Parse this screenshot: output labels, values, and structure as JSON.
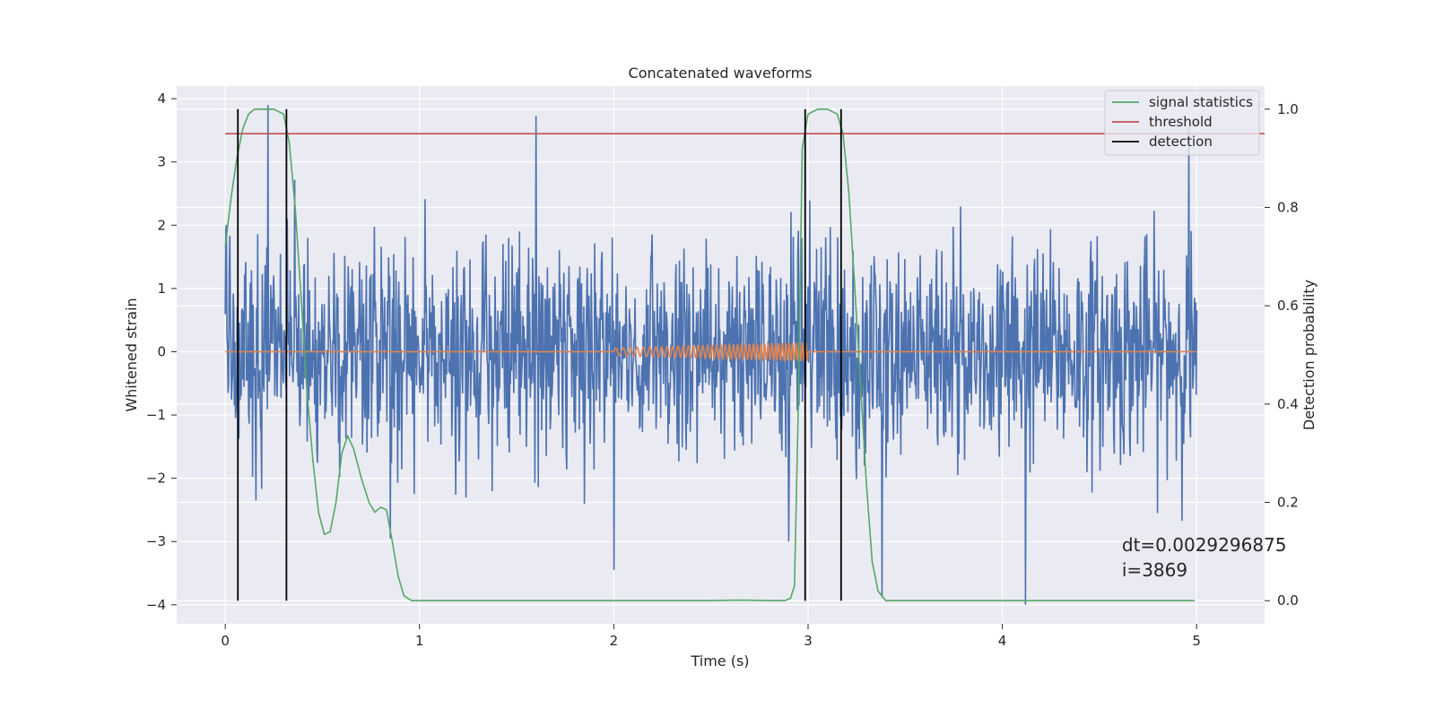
{
  "chart_data": {
    "type": "line",
    "title": "Concatenated waveforms",
    "xlabel": "Time (s)",
    "ylabel": "Whitened strain",
    "y2label": "Detection probability",
    "xlim": [
      -0.25,
      5.35
    ],
    "ylim": [
      -4.3,
      4.2
    ],
    "y2lim": [
      -0.047,
      1.047
    ],
    "xticks": [
      0,
      1,
      2,
      3,
      4,
      5
    ],
    "yticks": [
      -4,
      -3,
      -2,
      -1,
      0,
      1,
      2,
      3,
      4
    ],
    "y2ticks": [
      0.0,
      0.2,
      0.4,
      0.6,
      0.8,
      1.0
    ],
    "xtick_labels": [
      "0",
      "1",
      "2",
      "3",
      "4",
      "5"
    ],
    "ytick_labels": [
      "−4",
      "−3",
      "−2",
      "−1",
      "0",
      "1",
      "2",
      "3",
      "4"
    ],
    "y2tick_labels": [
      "0.0",
      "0.2",
      "0.4",
      "0.6",
      "0.8",
      "1.0"
    ],
    "grid": true,
    "legend_position": "top-right",
    "colors": {
      "background": "#eaeaf2",
      "grid": "#ffffff",
      "strain": "#4c72b0",
      "template": "#dd8452",
      "signal_statistics": "#55a868",
      "threshold": "#c44e52",
      "detection": "#000000"
    },
    "series": [
      {
        "name": "signal statistics",
        "axis": "y2",
        "x": [
          0,
          0.03,
          0.06,
          0.09,
          0.12,
          0.15,
          0.2,
          0.25,
          0.3,
          0.33,
          0.36,
          0.39,
          0.42,
          0.45,
          0.48,
          0.51,
          0.54,
          0.57,
          0.6,
          0.63,
          0.66,
          0.7,
          0.74,
          0.77,
          0.8,
          0.83,
          0.86,
          0.89,
          0.92,
          0.96,
          1.0,
          1.5,
          2.0,
          2.5,
          2.6,
          2.7,
          2.8,
          2.88,
          2.91,
          2.93,
          2.95,
          2.97,
          3.0,
          3.05,
          3.1,
          3.15,
          3.18,
          3.21,
          3.24,
          3.27,
          3.3,
          3.33,
          3.36,
          3.4,
          3.5,
          4.0,
          4.5,
          4.99
        ],
        "y": [
          0.72,
          0.82,
          0.9,
          0.96,
          0.99,
          1.0,
          1.0,
          1.0,
          0.99,
          0.93,
          0.8,
          0.62,
          0.43,
          0.29,
          0.18,
          0.135,
          0.14,
          0.2,
          0.3,
          0.335,
          0.31,
          0.25,
          0.2,
          0.18,
          0.19,
          0.185,
          0.12,
          0.05,
          0.01,
          0.0,
          0.0,
          0.0,
          0.0,
          0.0,
          0.001,
          0.001,
          0.0,
          0.0,
          0.005,
          0.03,
          0.4,
          0.92,
          0.99,
          1.0,
          1.0,
          0.99,
          0.95,
          0.83,
          0.64,
          0.44,
          0.24,
          0.08,
          0.02,
          0.0,
          0.0,
          0.0,
          0.0,
          0.0
        ]
      },
      {
        "name": "threshold",
        "axis": "y2",
        "x": [
          0,
          5.5
        ],
        "y": [
          0.95,
          0.95
        ]
      },
      {
        "name": "detection",
        "axis": "y2",
        "vlines": [
          0.065,
          0.315,
          2.985,
          3.17
        ],
        "ymin": 0,
        "ymax": 1
      },
      {
        "name": "whitened strain",
        "axis": "y",
        "x_range": [
          0,
          5
        ],
        "dt": 0.0029296875,
        "typical_amplitude": 0.85,
        "spikes": [
          {
            "x": 0.22,
            "y": 3.9
          },
          {
            "x": 1.6,
            "y": 3.73
          },
          {
            "x": 4.12,
            "y": -4.0
          },
          {
            "x": 2.0,
            "y": -3.45
          },
          {
            "x": 2.9,
            "y": -3.0
          },
          {
            "x": 3.38,
            "y": -3.88
          },
          {
            "x": 0.85,
            "y": -2.95
          },
          {
            "x": 4.96,
            "y": 3.55
          }
        ]
      },
      {
        "name": "template",
        "axis": "y",
        "x_range": [
          0,
          5
        ],
        "chirp_start": 2.0,
        "chirp_end": 3.0,
        "chirp_amplitude_start": 0.06,
        "chirp_amplitude_end": 0.15
      }
    ],
    "annotations": [
      {
        "text": "dt=0.0029296875",
        "x": 4.5,
        "y": -3.05
      },
      {
        "text": " i=3869",
        "x": 4.5,
        "y": -3.45
      }
    ]
  },
  "legend": {
    "items": [
      "signal statistics",
      "threshold",
      "detection"
    ]
  }
}
